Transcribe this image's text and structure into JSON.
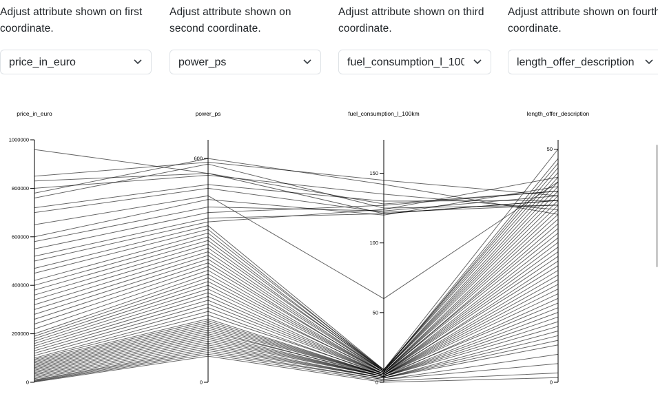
{
  "controls": [
    {
      "label": "Adjust attribute shown on first coordinate.",
      "selected": "price_in_euro"
    },
    {
      "label": "Adjust attribute shown on second coordinate.",
      "selected": "power_ps"
    },
    {
      "label": "Adjust attribute shown on third coordinate.",
      "selected": "fuel_consumption_l_100km"
    },
    {
      "label": "Adjust attribute shown on fourth coordinate.",
      "selected": "length_offer_description"
    }
  ],
  "icons": {
    "dropdown": "chevron-down-icon"
  },
  "colors": {
    "line": "#000000",
    "select_border": "#dee2e6",
    "text": "#212529"
  },
  "chart_data": {
    "type": "parallel_coordinates",
    "dimensions": [
      {
        "name": "price_in_euro",
        "range": [
          0,
          1000000
        ],
        "ticks": [
          0,
          200000,
          400000,
          600000,
          800000,
          1000000
        ],
        "tick_labels": [
          "0",
          "200000",
          "400000",
          "600000",
          "800000",
          "1000000"
        ]
      },
      {
        "name": "power_ps",
        "range": [
          0,
          650
        ],
        "ticks": [
          0,
          600
        ],
        "tick_labels": [
          "0",
          "600"
        ]
      },
      {
        "name": "fuel_consumption_l_100km",
        "range": [
          0,
          174
        ],
        "ticks": [
          0,
          50,
          100,
          150
        ],
        "tick_labels": [
          "0",
          "50",
          "100",
          "150"
        ]
      },
      {
        "name": "length_offer_description",
        "range": [
          0,
          52
        ],
        "ticks": [
          0,
          50
        ],
        "tick_labels": [
          "0",
          "50"
        ]
      }
    ],
    "records": [
      [
        960000,
        560,
        121,
        39
      ],
      [
        760000,
        585,
        125,
        38
      ],
      [
        850000,
        590,
        145,
        40
      ],
      [
        830000,
        560,
        128,
        41
      ],
      [
        800000,
        555,
        135,
        37
      ],
      [
        780000,
        600,
        142,
        36
      ],
      [
        720000,
        530,
        130,
        39
      ],
      [
        700000,
        520,
        122,
        38
      ],
      [
        650000,
        500,
        60,
        43
      ],
      [
        600000,
        490,
        120,
        42
      ],
      [
        580000,
        470,
        123,
        40
      ],
      [
        550000,
        455,
        127,
        41
      ],
      [
        520000,
        440,
        121,
        39
      ],
      [
        500000,
        430,
        124,
        44
      ],
      [
        470000,
        420,
        9,
        46
      ],
      [
        450000,
        410,
        8,
        48
      ],
      [
        420000,
        400,
        9,
        50
      ],
      [
        400000,
        390,
        8,
        47
      ],
      [
        380000,
        380,
        9,
        45
      ],
      [
        360000,
        370,
        8,
        43
      ],
      [
        340000,
        360,
        9,
        44
      ],
      [
        320000,
        350,
        8,
        42
      ],
      [
        300000,
        340,
        8,
        40
      ],
      [
        280000,
        330,
        8,
        41
      ],
      [
        260000,
        320,
        7,
        38
      ],
      [
        240000,
        310,
        8,
        39
      ],
      [
        220000,
        300,
        7,
        36
      ],
      [
        200000,
        290,
        7,
        37
      ],
      [
        190000,
        280,
        7,
        35
      ],
      [
        180000,
        270,
        7,
        33
      ],
      [
        170000,
        260,
        6,
        34
      ],
      [
        160000,
        250,
        7,
        32
      ],
      [
        150000,
        240,
        6,
        30
      ],
      [
        140000,
        230,
        6,
        31
      ],
      [
        130000,
        220,
        6,
        29
      ],
      [
        120000,
        210,
        6,
        28
      ],
      [
        110000,
        200,
        6,
        27
      ],
      [
        100000,
        190,
        5,
        26
      ],
      [
        95000,
        180,
        6,
        25
      ],
      [
        90000,
        170,
        5,
        24
      ],
      [
        85000,
        165,
        5,
        23
      ],
      [
        80000,
        160,
        5,
        22
      ],
      [
        75000,
        155,
        5,
        21
      ],
      [
        70000,
        150,
        5,
        20
      ],
      [
        65000,
        145,
        5,
        19
      ],
      [
        60000,
        140,
        4,
        18
      ],
      [
        55000,
        135,
        5,
        17
      ],
      [
        50000,
        130,
        4,
        16
      ],
      [
        45000,
        125,
        4,
        15
      ],
      [
        40000,
        120,
        4,
        14
      ],
      [
        35000,
        115,
        4,
        13
      ],
      [
        30000,
        110,
        4,
        12
      ],
      [
        25000,
        105,
        3,
        11
      ],
      [
        20000,
        100,
        3,
        10
      ],
      [
        15000,
        95,
        3,
        9
      ],
      [
        10000,
        90,
        3,
        8
      ],
      [
        8000,
        85,
        2,
        6
      ],
      [
        5000,
        80,
        2,
        4
      ],
      [
        3000,
        75,
        1,
        2
      ],
      [
        1000,
        70,
        0,
        1
      ]
    ]
  }
}
